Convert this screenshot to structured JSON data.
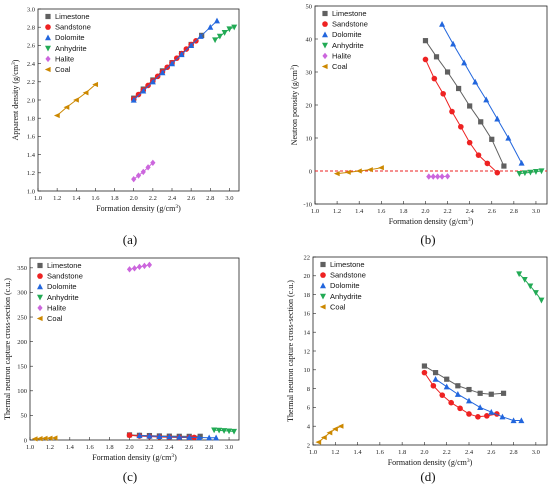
{
  "chart_data": [
    {
      "type": "scatter",
      "panel_label": "(a)",
      "xlabel": "Formation density (g/cm3)",
      "ylabel": "Apparent density (g/cm3)",
      "xlim": [
        1.0,
        3.1
      ],
      "ylim": [
        1.0,
        3.0
      ],
      "xticks": [
        "1.0",
        "1.2",
        "1.4",
        "1.6",
        "1.8",
        "2.0",
        "2.2",
        "2.4",
        "2.6",
        "2.8",
        "3.0"
      ],
      "yticks": [
        "1.0",
        "1.2",
        "1.4",
        "1.6",
        "1.8",
        "2.0",
        "2.2",
        "2.4",
        "2.6",
        "2.8",
        "3.0"
      ],
      "legend_position": "top-left",
      "series": [
        {
          "name": "Limestone",
          "marker": "square",
          "color": "#606060",
          "line": true,
          "x": [
            2.0,
            2.1,
            2.2,
            2.3,
            2.4,
            2.5,
            2.6,
            2.71
          ],
          "y": [
            2.02,
            2.12,
            2.22,
            2.32,
            2.41,
            2.51,
            2.61,
            2.71
          ]
        },
        {
          "name": "Sandstone",
          "marker": "circle",
          "color": "#ee2222",
          "line": true,
          "x": [
            2.0,
            2.05,
            2.1,
            2.15,
            2.2,
            2.25,
            2.3,
            2.35,
            2.4,
            2.45,
            2.5,
            2.55,
            2.6,
            2.65
          ],
          "y": [
            2.01,
            2.06,
            2.11,
            2.16,
            2.21,
            2.26,
            2.31,
            2.36,
            2.41,
            2.46,
            2.51,
            2.56,
            2.61,
            2.65
          ]
        },
        {
          "name": "Dolomite",
          "marker": "triangle",
          "color": "#2266dd",
          "line": true,
          "x": [
            2.0,
            2.1,
            2.2,
            2.3,
            2.4,
            2.5,
            2.6,
            2.7,
            2.8,
            2.87
          ],
          "y": [
            2.0,
            2.1,
            2.2,
            2.3,
            2.4,
            2.5,
            2.6,
            2.7,
            2.8,
            2.87
          ]
        },
        {
          "name": "Anhydrite",
          "marker": "triangle-down",
          "color": "#22aa55",
          "line": true,
          "x": [
            2.85,
            2.9,
            2.95,
            3.0,
            3.05
          ],
          "y": [
            2.66,
            2.7,
            2.74,
            2.78,
            2.8
          ]
        },
        {
          "name": "Halite",
          "marker": "diamond",
          "color": "#cc66dd",
          "line": true,
          "x": [
            2.0,
            2.05,
            2.1,
            2.15,
            2.2
          ],
          "y": [
            1.13,
            1.17,
            1.21,
            1.26,
            1.31
          ]
        },
        {
          "name": "Coal",
          "marker": "tri-left",
          "color": "#cc8800",
          "line": true,
          "x": [
            1.2,
            1.3,
            1.4,
            1.5,
            1.6
          ],
          "y": [
            1.83,
            1.92,
            2.0,
            2.08,
            2.17
          ]
        }
      ]
    },
    {
      "type": "scatter",
      "panel_label": "(b)",
      "xlabel": "Formation density (g/cm3)",
      "ylabel": "Neutron porosity (g/cm3)",
      "xlim": [
        1.0,
        3.1
      ],
      "ylim": [
        -10,
        50
      ],
      "xticks": [
        "1.0",
        "1.2",
        "1.4",
        "1.6",
        "1.8",
        "2.0",
        "2.2",
        "2.4",
        "2.6",
        "2.8",
        "3.0"
      ],
      "yticks": [
        "-10",
        "0",
        "10",
        "20",
        "30",
        "40",
        "50"
      ],
      "yticks_values": [
        -10,
        0,
        10,
        20,
        30,
        40,
        50
      ],
      "reference_line": {
        "y": 0,
        "color": "#ee2222",
        "style": "dashed"
      },
      "legend_position": "top-left",
      "series": [
        {
          "name": "Limestone",
          "marker": "square",
          "color": "#606060",
          "line": true,
          "x": [
            2.0,
            2.1,
            2.2,
            2.3,
            2.4,
            2.5,
            2.6,
            2.71
          ],
          "y": [
            39.5,
            34.6,
            30.0,
            25.0,
            19.7,
            14.9,
            9.6,
            1.5
          ]
        },
        {
          "name": "Sandstone",
          "marker": "circle",
          "color": "#ee2222",
          "line": true,
          "x": [
            2.0,
            2.08,
            2.16,
            2.24,
            2.32,
            2.4,
            2.48,
            2.56,
            2.65
          ],
          "y": [
            33.8,
            28.0,
            23.4,
            18.0,
            13.4,
            8.6,
            4.8,
            2.3,
            -0.5
          ]
        },
        {
          "name": "Dolomite",
          "marker": "triangle",
          "color": "#2266dd",
          "line": true,
          "x": [
            2.15,
            2.25,
            2.35,
            2.45,
            2.55,
            2.65,
            2.75,
            2.87
          ],
          "y": [
            44.5,
            38.5,
            32.8,
            27.0,
            21.6,
            15.8,
            10.0,
            2.4
          ]
        },
        {
          "name": "Anhydrite",
          "marker": "triangle-down",
          "color": "#22aa55",
          "line": true,
          "x": [
            2.85,
            2.9,
            2.95,
            3.0,
            3.05
          ],
          "y": [
            -0.8,
            -0.6,
            -0.4,
            -0.2,
            0.0
          ]
        },
        {
          "name": "Halite",
          "marker": "diamond",
          "color": "#cc66dd",
          "line": true,
          "x": [
            2.03,
            2.07,
            2.11,
            2.15,
            2.2
          ],
          "y": [
            -1.7,
            -1.7,
            -1.7,
            -1.7,
            -1.6
          ]
        },
        {
          "name": "Coal",
          "marker": "tri-left",
          "color": "#cc8800",
          "line": true,
          "x": [
            1.2,
            1.3,
            1.4,
            1.5,
            1.6
          ],
          "y": [
            -0.8,
            -0.4,
            0.0,
            0.4,
            1.0
          ]
        }
      ]
    },
    {
      "type": "scatter",
      "panel_label": "(c)",
      "xlabel": "Formation density (g/cm3)",
      "ylabel": "Thermal neutron capture cross-section (c.u.)",
      "xlim": [
        1.0,
        3.1
      ],
      "ylim": [
        0,
        370
      ],
      "xticks": [
        "1.0",
        "1.2",
        "1.4",
        "1.6",
        "1.8",
        "2.0",
        "2.2",
        "2.4",
        "2.6",
        "2.8",
        "3.0"
      ],
      "yticks": [
        "0",
        "50",
        "100",
        "150",
        "200",
        "250",
        "300",
        "350"
      ],
      "yticks_values": [
        0,
        50,
        100,
        150,
        200,
        250,
        300,
        350
      ],
      "legend_position": "top-left",
      "series": [
        {
          "name": "Limestone",
          "marker": "square",
          "color": "#606060",
          "line": true,
          "x": [
            2.0,
            2.1,
            2.2,
            2.3,
            2.4,
            2.5,
            2.6,
            2.71
          ],
          "y": [
            10.4,
            9.5,
            9.0,
            8.2,
            7.8,
            7.5,
            7.4,
            7.5
          ]
        },
        {
          "name": "Sandstone",
          "marker": "circle",
          "color": "#ee2222",
          "line": true,
          "x": [
            2.0,
            2.1,
            2.2,
            2.3,
            2.4,
            2.5,
            2.6,
            2.65
          ],
          "y": [
            9.7,
            8.0,
            7.0,
            6.2,
            5.5,
            5.0,
            5.1,
            5.3
          ]
        },
        {
          "name": "Dolomite",
          "marker": "triangle",
          "color": "#2266dd",
          "line": true,
          "x": [
            2.1,
            2.2,
            2.3,
            2.4,
            2.5,
            2.6,
            2.7,
            2.8,
            2.87
          ],
          "y": [
            9.0,
            8.2,
            7.4,
            6.7,
            6.0,
            5.5,
            5.0,
            4.7,
            4.6
          ]
        },
        {
          "name": "Anhydrite",
          "marker": "triangle-down",
          "color": "#22aa55",
          "line": true,
          "x": [
            2.85,
            2.9,
            2.95,
            3.0,
            3.05
          ],
          "y": [
            20.2,
            19.6,
            18.9,
            18.2,
            17.4
          ]
        },
        {
          "name": "Halite",
          "marker": "diamond",
          "color": "#cc66dd",
          "line": true,
          "x": [
            2.0,
            2.05,
            2.1,
            2.15,
            2.2
          ],
          "y": [
            347,
            349,
            352,
            354,
            356
          ]
        },
        {
          "name": "Coal",
          "marker": "tri-left",
          "color": "#cc8800",
          "line": true,
          "x": [
            1.05,
            1.1,
            1.15,
            1.2,
            1.25
          ],
          "y": [
            2.3,
            2.8,
            3.3,
            3.7,
            4.0
          ]
        }
      ]
    },
    {
      "type": "scatter",
      "panel_label": "(d)",
      "xlabel": "Formation density (g/cm3)",
      "ylabel": "Thermal neutron capture cross-section (c.u.)",
      "xlim": [
        1.0,
        3.1
      ],
      "ylim": [
        2,
        22
      ],
      "xticks": [
        "1.0",
        "1.2",
        "1.4",
        "1.6",
        "1.8",
        "2.0",
        "2.2",
        "2.4",
        "2.6",
        "2.8",
        "3.0"
      ],
      "yticks": [
        "2",
        "4",
        "6",
        "8",
        "10",
        "12",
        "14",
        "16",
        "18",
        "20",
        "22"
      ],
      "yticks_values": [
        2,
        4,
        6,
        8,
        10,
        12,
        14,
        16,
        18,
        20,
        22
      ],
      "legend_position": "top-left",
      "series": [
        {
          "name": "Limestone",
          "marker": "square",
          "color": "#606060",
          "line": true,
          "x": [
            2.0,
            2.1,
            2.2,
            2.3,
            2.4,
            2.5,
            2.6,
            2.71
          ],
          "y": [
            10.4,
            9.7,
            9.0,
            8.3,
            7.9,
            7.5,
            7.4,
            7.5
          ]
        },
        {
          "name": "Sandstone",
          "marker": "circle",
          "color": "#ee2222",
          "line": true,
          "x": [
            2.0,
            2.08,
            2.16,
            2.24,
            2.32,
            2.4,
            2.48,
            2.56,
            2.65
          ],
          "y": [
            9.7,
            8.3,
            7.3,
            6.5,
            5.9,
            5.3,
            5.0,
            5.1,
            5.3
          ]
        },
        {
          "name": "Dolomite",
          "marker": "triangle",
          "color": "#2266dd",
          "line": true,
          "x": [
            2.1,
            2.2,
            2.3,
            2.4,
            2.5,
            2.6,
            2.7,
            2.8,
            2.87
          ],
          "y": [
            9.0,
            8.2,
            7.4,
            6.7,
            6.0,
            5.5,
            5.0,
            4.6,
            4.6
          ]
        },
        {
          "name": "Anhydrite",
          "marker": "triangle-down",
          "color": "#22aa55",
          "line": true,
          "x": [
            2.85,
            2.9,
            2.95,
            3.0,
            3.05
          ],
          "y": [
            20.2,
            19.6,
            18.9,
            18.2,
            17.4
          ]
        },
        {
          "name": "Coal",
          "marker": "tri-left",
          "color": "#cc8800",
          "line": true,
          "x": [
            1.05,
            1.1,
            1.15,
            1.2,
            1.25
          ],
          "y": [
            2.3,
            2.8,
            3.3,
            3.7,
            4.0
          ]
        }
      ]
    }
  ]
}
